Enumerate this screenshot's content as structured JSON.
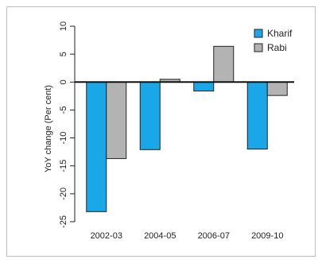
{
  "chart_data": {
    "type": "bar",
    "title": "",
    "xlabel": "",
    "ylabel": "YoY change (Per cent)",
    "ylim": [
      -25,
      10
    ],
    "yticks": [
      10,
      5,
      0,
      -5,
      -10,
      -15,
      -20,
      -25
    ],
    "ytick_labels": [
      "10",
      "5",
      "0",
      "-5",
      "-10",
      "-15",
      "-20",
      "-25"
    ],
    "categories": [
      "2002-03",
      "2004-05",
      "2006-07",
      "2009-10"
    ],
    "series": [
      {
        "name": "Kharif",
        "color": "#1aa7e8",
        "values": [
          -23.2,
          -12.1,
          -1.6,
          -12.0
        ]
      },
      {
        "name": "Rabi",
        "color": "#b3b3b3",
        "values": [
          -13.7,
          0.5,
          6.4,
          -2.4
        ]
      }
    ],
    "legend_position": "top-right",
    "grid": false
  }
}
